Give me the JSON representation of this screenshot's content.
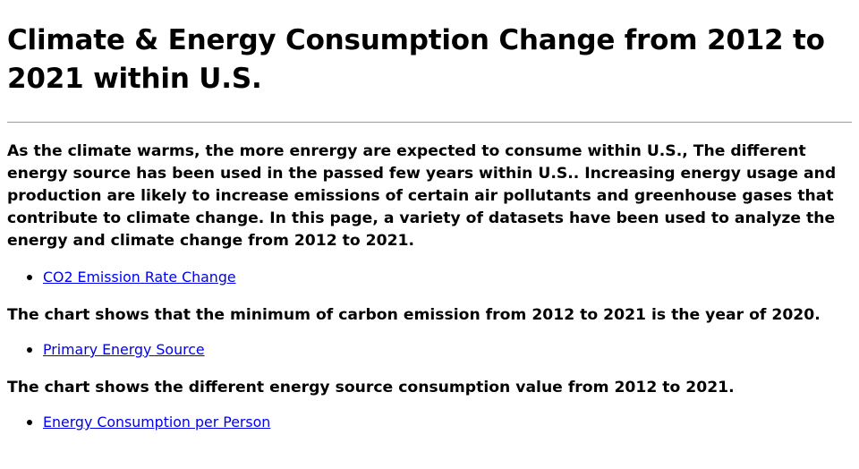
{
  "page": {
    "title": "Climate & Energy Consumption Change from 2012 to 2021 within U.S.",
    "intro": "As the climate warms, the more enrergy are expected to consume within U.S., The different energy source has been used in the passed few years within U.S.. Increasing energy usage and production are likely to increase emissions of certain air pollutants and greenhouse gases that contribute to climate change. In this page, a variety of datasets have been used to analyze the energy and climate change from 2012 to 2021."
  },
  "sections": [
    {
      "link": "CO2 Emission Rate Change",
      "caption": "The chart shows that the minimum of carbon emission from 2012 to 2021 is the year of 2020."
    },
    {
      "link": "Primary Energy Source",
      "caption": "The chart shows the different energy source consumption value from 2012 to 2021."
    },
    {
      "link": "Energy Consumption per Person"
    }
  ],
  "colors": {
    "link": "#0000ee",
    "divider": "#9a9a9a",
    "text": "#000000"
  }
}
